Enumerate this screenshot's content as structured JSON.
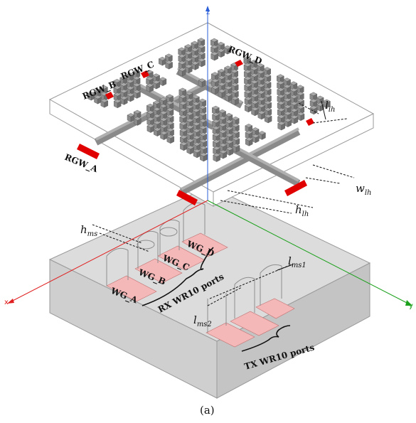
{
  "axes": {
    "z": {
      "label": "z",
      "color": "#2b5fd9"
    },
    "x": {
      "label": "x",
      "color": "#e02020"
    },
    "y": {
      "label": "y",
      "color": "#1aa01a"
    }
  },
  "rgw_labels": {
    "a": "RGW_A",
    "b": "RGW_B",
    "c": "RGW_C",
    "d": "RGW_D"
  },
  "wg_labels": {
    "a": "WG_A",
    "b": "WG_B",
    "c": "WG_C",
    "d": "WG_D"
  },
  "port_groups": {
    "rx": "RX WR10 ports",
    "tx": "TX WR10 ports"
  },
  "dimensions": {
    "l_lh": {
      "main": "l",
      "sub": "lh"
    },
    "w_lh": {
      "main": "w",
      "sub": "lh"
    },
    "h_lh": {
      "main": "h",
      "sub": "lh"
    },
    "h_ms": {
      "main": "h",
      "sub": "ms"
    },
    "l_ms1": {
      "main": "l",
      "sub": "ms1"
    },
    "l_ms2": {
      "main": "l",
      "sub": "ms2"
    }
  },
  "caption": "(a)",
  "colors": {
    "port_red": "#e00000",
    "port_pink": "#f4b8b8",
    "block_gray": "#d8d8d8",
    "pin_top": "#a9a9a9",
    "pin_left": "#8a8a8a",
    "pin_right": "#6e6e6e"
  }
}
